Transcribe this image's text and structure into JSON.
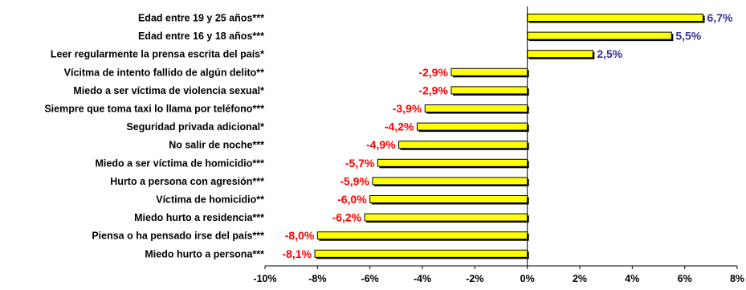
{
  "chart_data": {
    "type": "bar",
    "orientation": "horizontal",
    "title": "",
    "xlabel": "",
    "ylabel": "",
    "categories": [
      "Edad entre 19 y 25 años***",
      "Edad entre 16 y 18 años***",
      "Leer regularmente la prensa escrita del país*",
      "Vícitma de intento fallido de algún delito**",
      "Miedo a ser víctima de violencia sexual*",
      "Siempre que toma taxi lo llama por teléfono***",
      "Seguridad privada adicional*",
      "No salir de noche***",
      "Miedo a ser víctima de homicidio***",
      "Hurto a persona con agresión***",
      "Víctima de homicidio**",
      "Miedo hurto a residencia***",
      "Piensa o ha pensado irse del país***",
      "Miedo hurto a persona***"
    ],
    "values": [
      6.7,
      5.5,
      2.5,
      -2.9,
      -2.9,
      -3.9,
      -4.2,
      -4.9,
      -5.7,
      -5.9,
      -6.0,
      -6.2,
      -8.0,
      -8.1
    ],
    "value_labels": [
      "6,7%",
      "5,5%",
      "2,5%",
      "-2,9%",
      "-2,9%",
      "-3,9%",
      "-4,2%",
      "-4,9%",
      "-5,7%",
      "-5,9%",
      "-6,0%",
      "-6,2%",
      "-8,0%",
      "-8,1%"
    ],
    "xlim": [
      -10,
      8
    ],
    "xticks": [
      -10,
      -8,
      -6,
      -4,
      -2,
      0,
      2,
      4,
      6,
      8
    ],
    "xtick_labels": [
      "-10%",
      "-8%",
      "-6%",
      "-4%",
      "-2%",
      "0%",
      "2%",
      "4%",
      "6%",
      "8%"
    ],
    "grid": false,
    "legend": "none",
    "colors": {
      "bar_fill": "#FFFF00",
      "bar_stroke": "#000000",
      "positive_label": "#333399",
      "negative_label": "#FF0000",
      "axis": "#000000"
    }
  }
}
